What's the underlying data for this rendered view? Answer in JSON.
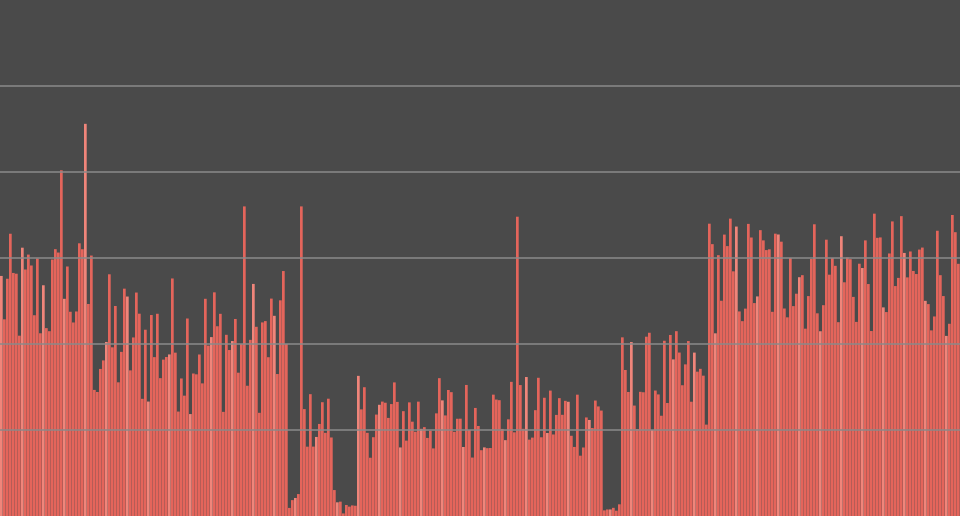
{
  "chart_data": {
    "type": "bar",
    "title": "",
    "xlabel": "",
    "ylabel": "",
    "grid": true,
    "grid_lines": 5,
    "ylim": [
      0,
      1
    ],
    "colors": {
      "background": "#4a4a4a",
      "bar": "#e4655b",
      "bar_light": "#f0857a",
      "grid": "#8a8a8a"
    },
    "bar_count": 320,
    "segments": [
      {
        "from": 0,
        "to": 30,
        "base": 0.38,
        "jitter": 0.12
      },
      {
        "from": 31,
        "to": 95,
        "base": 0.28,
        "jitter": 0.14
      },
      {
        "from": 96,
        "to": 100,
        "base": 0.02,
        "jitter": 0.02
      },
      {
        "from": 101,
        "to": 110,
        "base": 0.16,
        "jitter": 0.06
      },
      {
        "from": 111,
        "to": 115,
        "base": 0.02,
        "jitter": 0.03
      },
      {
        "from": 116,
        "to": 118,
        "base": 0.01,
        "jitter": 0.01
      },
      {
        "from": 119,
        "to": 200,
        "base": 0.16,
        "jitter": 0.08
      },
      {
        "from": 201,
        "to": 206,
        "base": 0.01,
        "jitter": 0.01
      },
      {
        "from": 207,
        "to": 235,
        "base": 0.22,
        "jitter": 0.1
      },
      {
        "from": 236,
        "to": 319,
        "base": 0.42,
        "jitter": 0.12
      }
    ],
    "spikes": [
      {
        "index": 20,
        "value": 0.67
      },
      {
        "index": 28,
        "value": 0.76
      },
      {
        "index": 81,
        "value": 0.6
      },
      {
        "index": 100,
        "value": 0.6
      },
      {
        "index": 172,
        "value": 0.58
      },
      {
        "index": 263,
        "value": 0.5
      },
      {
        "index": 318,
        "value": 0.55
      }
    ]
  }
}
